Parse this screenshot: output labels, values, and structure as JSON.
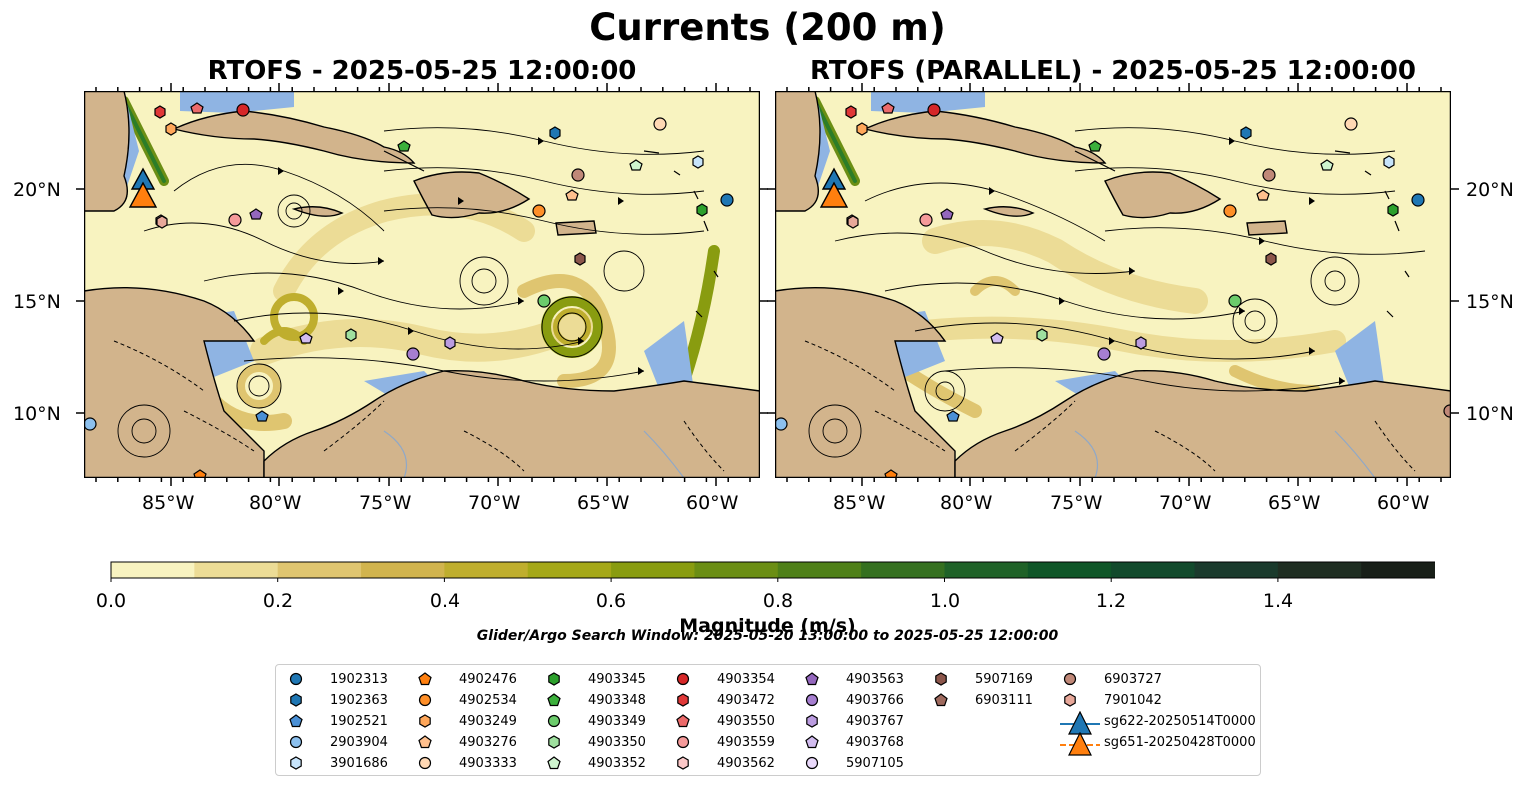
{
  "figure": {
    "title": "Currents (200 m)",
    "panels": [
      {
        "title": "RTOFS - 2025-05-25 12:00:00"
      },
      {
        "title": "RTOFS (PARALLEL) - 2025-05-25 12:00:00"
      }
    ],
    "lon_ticks": [
      "85°W",
      "80°W",
      "75°W",
      "70°W",
      "65°W",
      "60°W"
    ],
    "lat_ticks": [
      "20°N",
      "15°N",
      "10°N"
    ],
    "colorbar": {
      "ticks": [
        "0.0",
        "0.2",
        "0.4",
        "0.6",
        "0.8",
        "1.0",
        "1.2",
        "1.4"
      ],
      "label": "Magnitude (m/s)",
      "colors": [
        "#f8f3c0",
        "#ecdc96",
        "#dfc570",
        "#d1b44e",
        "#bfae2e",
        "#a5a818",
        "#899c10",
        "#6b8e14",
        "#4f8018",
        "#357020",
        "#1f6228",
        "#0f5628",
        "#124a2c",
        "#1a3a2c",
        "#1f2e22",
        "#181f18"
      ]
    },
    "search_window": "Glider/Argo Search Window: 2025-05-20 13:00:00 to 2025-05-25 12:00:00",
    "colors": {
      "land": "#d2b48c",
      "water": "#8fb4e3",
      "coast": "#000000",
      "streamline": "#000000"
    }
  },
  "legend": [
    {
      "label": "1902313",
      "marker": "circle",
      "color": "#1f77b4"
    },
    {
      "label": "1902363",
      "marker": "hexagon",
      "color": "#1f77b4"
    },
    {
      "label": "1902521",
      "marker": "pentagon",
      "color": "#4a90d6"
    },
    {
      "label": "2903904",
      "marker": "circle",
      "color": "#8cc0ee"
    },
    {
      "label": "3901686",
      "marker": "hexagon",
      "color": "#c7e4fb"
    },
    {
      "label": "4902476",
      "marker": "pentagon",
      "color": "#ff7f0e"
    },
    {
      "label": "4902534",
      "marker": "circle",
      "color": "#ff8f28"
    },
    {
      "label": "4903249",
      "marker": "hexagon",
      "color": "#ffa75a"
    },
    {
      "label": "4903276",
      "marker": "pentagon",
      "color": "#ffc08e"
    },
    {
      "label": "4903333",
      "marker": "circle",
      "color": "#ffd8b4"
    },
    {
      "label": "4903345",
      "marker": "hexagon",
      "color": "#2ca02c"
    },
    {
      "label": "4903348",
      "marker": "pentagon",
      "color": "#3cb03c"
    },
    {
      "label": "4903349",
      "marker": "circle",
      "color": "#6ccc6c"
    },
    {
      "label": "4903350",
      "marker": "hexagon",
      "color": "#9fe09f"
    },
    {
      "label": "4903352",
      "marker": "pentagon",
      "color": "#cff5cf"
    },
    {
      "label": "4903354",
      "marker": "circle",
      "color": "#d62728"
    },
    {
      "label": "4903472",
      "marker": "hexagon",
      "color": "#e03838"
    },
    {
      "label": "4903550",
      "marker": "pentagon",
      "color": "#ec6a6a"
    },
    {
      "label": "4903559",
      "marker": "circle",
      "color": "#f59a9a"
    },
    {
      "label": "4903562",
      "marker": "hexagon",
      "color": "#fcc8c8"
    },
    {
      "label": "4903563",
      "marker": "pentagon",
      "color": "#9467bd"
    },
    {
      "label": "4903766",
      "marker": "circle",
      "color": "#a67ed0"
    },
    {
      "label": "4903767",
      "marker": "hexagon",
      "color": "#bb9ce0"
    },
    {
      "label": "4903768",
      "marker": "pentagon",
      "color": "#d2bcef"
    },
    {
      "label": "5907105",
      "marker": "circle",
      "color": "#ead9fb"
    },
    {
      "label": "5907169",
      "marker": "hexagon",
      "color": "#8c564b"
    },
    {
      "label": "6903111",
      "marker": "pentagon",
      "color": "#9f6a5e"
    },
    {
      "label": "6903727",
      "marker": "circle",
      "color": "#c08878"
    },
    {
      "label": "7901042",
      "marker": "hexagon",
      "color": "#e8a89a"
    },
    {
      "label": "sg622-20250514T0000",
      "marker": "triangle",
      "color": "#1f77b4"
    },
    {
      "label": "sg651-20250428T0000",
      "marker": "triangle",
      "color": "#ff7f0e"
    }
  ]
}
